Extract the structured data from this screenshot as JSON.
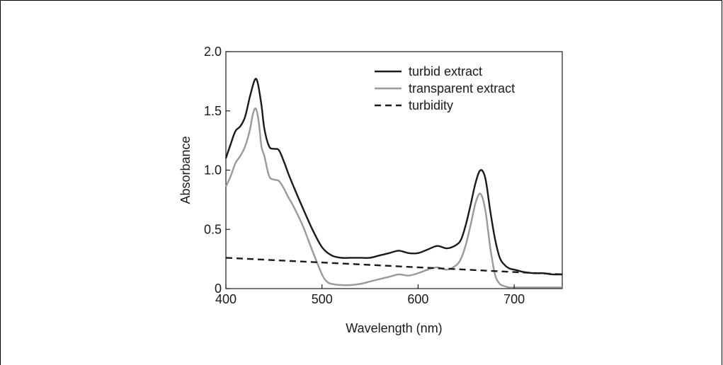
{
  "chart_data": {
    "type": "line",
    "xlabel": "Wavelength (nm)",
    "ylabel": "Absorbance",
    "xlim": [
      400,
      750
    ],
    "ylim": [
      0,
      2.0
    ],
    "x_ticks": [
      400,
      500,
      600,
      700
    ],
    "x_tick_labels": [
      "400",
      "500",
      "600",
      "700"
    ],
    "y_ticks": [
      0,
      0.5,
      1.0,
      1.5,
      2.0
    ],
    "y_tick_labels": [
      "0",
      "0.5",
      "1.0",
      "1.5",
      "2.0"
    ],
    "grid": false,
    "legend_position": "top-right",
    "series": [
      {
        "name": "turbid extract",
        "color": "#1a1a1a",
        "dash": "solid",
        "x": [
          400,
          405,
          410,
          415,
          420,
          425,
          430,
          433,
          437,
          440,
          445,
          450,
          455,
          460,
          465,
          470,
          480,
          490,
          500,
          510,
          520,
          530,
          540,
          550,
          560,
          570,
          580,
          590,
          600,
          610,
          620,
          630,
          640,
          645,
          650,
          655,
          660,
          665,
          670,
          675,
          680,
          685,
          690,
          695,
          700,
          705,
          710,
          720,
          730,
          740,
          750
        ],
        "y": [
          1.1,
          1.22,
          1.33,
          1.37,
          1.45,
          1.62,
          1.76,
          1.74,
          1.55,
          1.35,
          1.2,
          1.18,
          1.17,
          1.08,
          0.97,
          0.87,
          0.68,
          0.5,
          0.35,
          0.28,
          0.26,
          0.26,
          0.26,
          0.26,
          0.28,
          0.3,
          0.32,
          0.3,
          0.3,
          0.33,
          0.36,
          0.34,
          0.37,
          0.42,
          0.55,
          0.72,
          0.9,
          1.0,
          0.93,
          0.66,
          0.42,
          0.26,
          0.2,
          0.17,
          0.16,
          0.15,
          0.14,
          0.13,
          0.13,
          0.12,
          0.12
        ]
      },
      {
        "name": "transparent extract",
        "color": "#999999",
        "dash": "solid",
        "x": [
          400,
          405,
          410,
          415,
          420,
          425,
          428,
          431,
          434,
          437,
          440,
          445,
          450,
          455,
          460,
          465,
          470,
          480,
          490,
          500,
          505,
          510,
          520,
          530,
          540,
          550,
          560,
          570,
          580,
          590,
          600,
          610,
          620,
          630,
          640,
          645,
          650,
          655,
          660,
          665,
          670,
          675,
          680,
          685,
          690,
          695,
          700,
          710,
          720,
          730,
          740,
          750
        ],
        "y": [
          0.86,
          0.95,
          1.06,
          1.12,
          1.2,
          1.34,
          1.47,
          1.52,
          1.42,
          1.2,
          1.12,
          0.95,
          0.92,
          0.91,
          0.85,
          0.77,
          0.7,
          0.53,
          0.32,
          0.12,
          0.06,
          0.04,
          0.03,
          0.03,
          0.04,
          0.06,
          0.08,
          0.1,
          0.12,
          0.11,
          0.13,
          0.16,
          0.18,
          0.16,
          0.2,
          0.26,
          0.38,
          0.55,
          0.73,
          0.8,
          0.66,
          0.35,
          0.12,
          0.04,
          0.02,
          0.01,
          0.01,
          0.01,
          0.01,
          0.01,
          0.01,
          0.01
        ]
      },
      {
        "name": "turbidity",
        "color": "#1a1a1a",
        "dash": "dashed",
        "x": [
          400,
          450,
          500,
          550,
          600,
          650,
          700,
          750
        ],
        "y": [
          0.26,
          0.24,
          0.22,
          0.2,
          0.18,
          0.16,
          0.14,
          0.12
        ]
      }
    ]
  }
}
